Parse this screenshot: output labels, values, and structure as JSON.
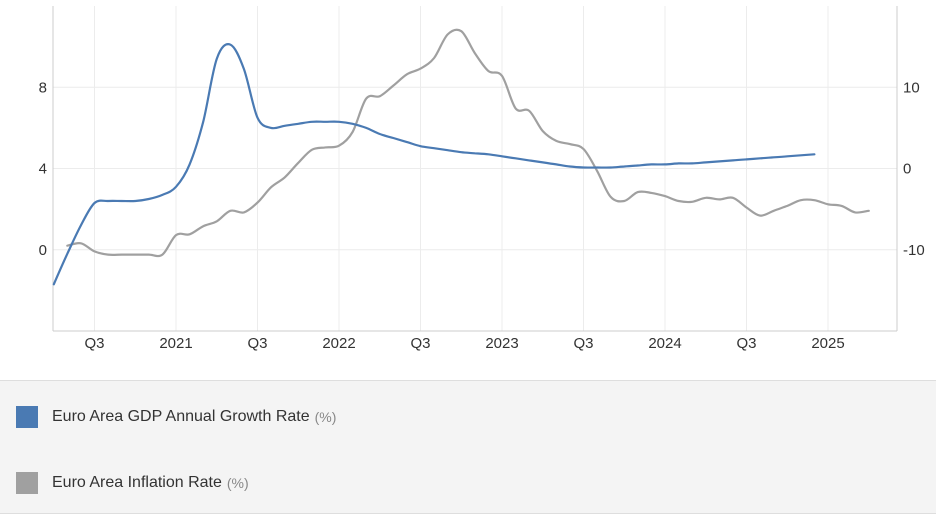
{
  "chart_data": {
    "type": "line",
    "x_tick_labels": [
      "Q3",
      "2021",
      "Q3",
      "2022",
      "Q3",
      "2023",
      "Q3",
      "2024",
      "Q3",
      "2025"
    ],
    "left_axis": {
      "ticks": [
        "0",
        "4",
        "8"
      ],
      "values": [
        0,
        4,
        8
      ],
      "range": [
        -4,
        12
      ]
    },
    "right_axis": {
      "ticks": [
        "-10",
        "0",
        "10"
      ],
      "values": [
        -10,
        0,
        10
      ],
      "range": [
        -20,
        20
      ]
    },
    "grid": true,
    "legend_position": "bottom",
    "series": [
      {
        "name": "Euro Area GDP Annual Growth Rate",
        "unit": "(%)",
        "axis": "left",
        "color": "#4a7ab3",
        "points": [
          [
            "2020-04",
            -1.7
          ],
          [
            "2020-05",
            -0.2
          ],
          [
            "2020-06",
            1.2
          ],
          [
            "2020-07",
            2.3
          ],
          [
            "2020-08",
            2.4
          ],
          [
            "2020-09",
            2.4
          ],
          [
            "2020-10",
            2.4
          ],
          [
            "2020-11",
            2.5
          ],
          [
            "2020-12",
            2.7
          ],
          [
            "2021-01",
            3.1
          ],
          [
            "2021-02",
            4.2
          ],
          [
            "2021-03",
            6.3
          ],
          [
            "2021-04",
            9.4
          ],
          [
            "2021-05",
            10.1
          ],
          [
            "2021-06",
            8.9
          ],
          [
            "2021-07",
            6.5
          ],
          [
            "2021-08",
            6.0
          ],
          [
            "2021-09",
            6.1
          ],
          [
            "2021-10",
            6.2
          ],
          [
            "2021-11",
            6.3
          ],
          [
            "2021-12",
            6.3
          ],
          [
            "2022-01",
            6.3
          ],
          [
            "2022-02",
            6.2
          ],
          [
            "2022-03",
            6.0
          ],
          [
            "2022-04",
            5.7
          ],
          [
            "2022-05",
            5.5
          ],
          [
            "2022-06",
            5.3
          ],
          [
            "2022-07",
            5.1
          ],
          [
            "2022-08",
            5.0
          ],
          [
            "2022-09",
            4.9
          ],
          [
            "2022-10",
            4.8
          ],
          [
            "2022-11",
            4.75
          ],
          [
            "2022-12",
            4.7
          ],
          [
            "2023-01",
            4.6
          ],
          [
            "2023-02",
            4.5
          ],
          [
            "2023-03",
            4.4
          ],
          [
            "2023-04",
            4.3
          ],
          [
            "2023-05",
            4.2
          ],
          [
            "2023-06",
            4.1
          ],
          [
            "2023-07",
            4.05
          ],
          [
            "2023-08",
            4.05
          ],
          [
            "2023-09",
            4.05
          ],
          [
            "2023-10",
            4.1
          ],
          [
            "2023-11",
            4.15
          ],
          [
            "2023-12",
            4.2
          ],
          [
            "2024-01",
            4.2
          ],
          [
            "2024-02",
            4.25
          ],
          [
            "2024-03",
            4.25
          ],
          [
            "2024-04",
            4.3
          ],
          [
            "2024-05",
            4.35
          ],
          [
            "2024-06",
            4.4
          ],
          [
            "2024-07",
            4.45
          ],
          [
            "2024-08",
            4.5
          ],
          [
            "2024-09",
            4.55
          ],
          [
            "2024-10",
            4.6
          ],
          [
            "2024-11",
            4.65
          ],
          [
            "2024-12",
            4.7
          ]
        ]
      },
      {
        "name": "Euro Area Inflation Rate",
        "unit": "(%)",
        "axis": "right",
        "color": "#a0a0a0",
        "points": [
          [
            "2020-05",
            -9.5
          ],
          [
            "2020-06",
            -9.2
          ],
          [
            "2020-07",
            -10.2
          ],
          [
            "2020-08",
            -10.6
          ],
          [
            "2020-09",
            -10.6
          ],
          [
            "2020-10",
            -10.6
          ],
          [
            "2020-11",
            -10.6
          ],
          [
            "2020-12",
            -10.6
          ],
          [
            "2021-01",
            -8.2
          ],
          [
            "2021-02",
            -8.1
          ],
          [
            "2021-03",
            -7.1
          ],
          [
            "2021-04",
            -6.5
          ],
          [
            "2021-05",
            -5.2
          ],
          [
            "2021-06",
            -5.4
          ],
          [
            "2021-07",
            -4.2
          ],
          [
            "2021-08",
            -2.3
          ],
          [
            "2021-09",
            -1.1
          ],
          [
            "2021-10",
            0.7
          ],
          [
            "2021-11",
            2.3
          ],
          [
            "2021-12",
            2.6
          ],
          [
            "2022-01",
            2.8
          ],
          [
            "2022-02",
            4.5
          ],
          [
            "2022-03",
            8.6
          ],
          [
            "2022-04",
            8.9
          ],
          [
            "2022-05",
            10.2
          ],
          [
            "2022-06",
            11.6
          ],
          [
            "2022-07",
            12.3
          ],
          [
            "2022-08",
            13.6
          ],
          [
            "2022-09",
            16.5
          ],
          [
            "2022-10",
            16.9
          ],
          [
            "2022-11",
            14.2
          ],
          [
            "2022-12",
            12.0
          ],
          [
            "2023-01",
            11.4
          ],
          [
            "2023-02",
            7.4
          ],
          [
            "2023-03",
            7.1
          ],
          [
            "2023-04",
            4.6
          ],
          [
            "2023-05",
            3.4
          ],
          [
            "2023-06",
            3.0
          ],
          [
            "2023-07",
            2.4
          ],
          [
            "2023-08",
            -0.3
          ],
          [
            "2023-09",
            -3.5
          ],
          [
            "2023-10",
            -4.0
          ],
          [
            "2023-11",
            -2.9
          ],
          [
            "2023-12",
            -3.0
          ],
          [
            "2024-01",
            -3.4
          ],
          [
            "2024-02",
            -4.0
          ],
          [
            "2024-03",
            -4.1
          ],
          [
            "2024-04",
            -3.6
          ],
          [
            "2024-05",
            -3.8
          ],
          [
            "2024-06",
            -3.6
          ],
          [
            "2024-07",
            -4.8
          ],
          [
            "2024-08",
            -5.8
          ],
          [
            "2024-09",
            -5.2
          ],
          [
            "2024-10",
            -4.6
          ],
          [
            "2024-11",
            -3.9
          ],
          [
            "2024-12",
            -3.9
          ],
          [
            "2025-01",
            -4.4
          ],
          [
            "2025-02",
            -4.6
          ],
          [
            "2025-03",
            -5.4
          ],
          [
            "2025-04",
            -5.2
          ]
        ]
      }
    ]
  }
}
